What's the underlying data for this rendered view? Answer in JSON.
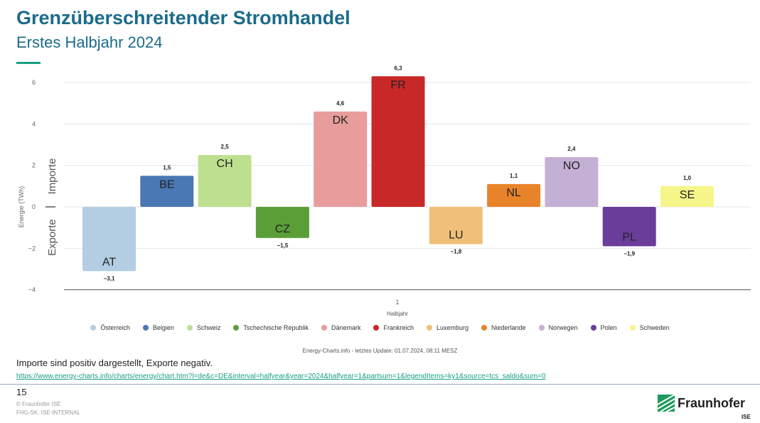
{
  "header": {
    "title": "Grenzüberschreitender Stromhandel",
    "subtitle": "Erstes Halbjahr 2024"
  },
  "chart_data": {
    "type": "bar",
    "ylabel": "Energie (TWh)",
    "xlabel": "Halbjahr",
    "x_tick": "1",
    "ylim": [
      -4,
      6
    ],
    "yticks": [
      6,
      4,
      2,
      0,
      -2,
      -4
    ],
    "grid": true,
    "legend_position": "bottom",
    "side_labels": {
      "positive": "Importe",
      "negative": "Exporte"
    },
    "categories": [
      "AT",
      "BE",
      "CH",
      "CZ",
      "DK",
      "FR",
      "LU",
      "NL",
      "NO",
      "PL",
      "SE"
    ],
    "series": [
      {
        "name": "Österreich",
        "code": "AT",
        "value": -3.1,
        "label": "−3,1",
        "color": "#b3cde3"
      },
      {
        "name": "Belgien",
        "code": "BE",
        "value": 1.5,
        "label": "1,5",
        "color": "#4a78b5"
      },
      {
        "name": "Schweiz",
        "code": "CH",
        "value": 2.5,
        "label": "2,5",
        "color": "#bde08e"
      },
      {
        "name": "Tschechische Republik",
        "code": "CZ",
        "value": -1.5,
        "label": "−1,5",
        "color": "#5a9e38"
      },
      {
        "name": "Dänemark",
        "code": "DK",
        "value": 4.6,
        "label": "4,6",
        "color": "#e89c9c"
      },
      {
        "name": "Frankreich",
        "code": "FR",
        "value": 6.3,
        "label": "6,3",
        "color": "#c82828"
      },
      {
        "name": "Luxemburg",
        "code": "LU",
        "value": -1.8,
        "label": "−1,8",
        "color": "#f0c078"
      },
      {
        "name": "Niederlande",
        "code": "NL",
        "value": 1.1,
        "label": "1,1",
        "color": "#e8832a"
      },
      {
        "name": "Norwegen",
        "code": "NO",
        "value": 2.4,
        "label": "2,4",
        "color": "#c5b0d5"
      },
      {
        "name": "Polen",
        "code": "PL",
        "value": -1.9,
        "label": "−1,9",
        "color": "#6a3d9a"
      },
      {
        "name": "Schweden",
        "code": "SE",
        "value": 1.0,
        "label": "1,0",
        "color": "#f5f58a"
      }
    ]
  },
  "source": "Energy-Charts.info - letztes Update: 01.07.2024, 08:11 MESZ",
  "note": "Importe sind positiv dargestellt, Exporte negativ.",
  "link": "https://www.energy-charts.info/charts/energy/chart.htm?l=de&c=DE&interval=halfyear&year=2024&halfyear=1&partsum=1&legendItems=ky1&source=tcs_saldo&sum=0",
  "footer": {
    "page": "15",
    "copyright": "© Fraunhofer ISE",
    "classification": "FHG-SK: ISE-INTERNAL",
    "logo": "Fraunhofer",
    "logo_sub": "ISE"
  }
}
